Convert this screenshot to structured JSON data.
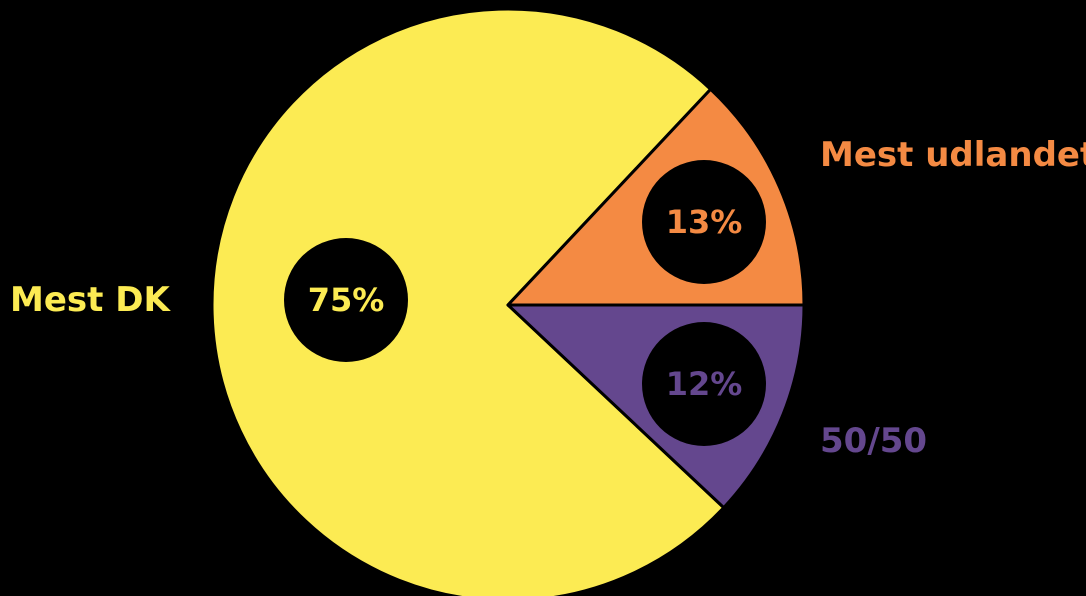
{
  "chart_data": {
    "type": "pie",
    "title": "",
    "slices": [
      {
        "label": "Mest DK",
        "value": 75,
        "value_label": "75%",
        "color": "#FCEB53"
      },
      {
        "label": "Mest udlandet",
        "value": 13,
        "value_label": "13%",
        "color": "#F48A43"
      },
      {
        "label": "50/50",
        "value": 12,
        "value_label": "12%",
        "color": "#64478E"
      }
    ],
    "legend": "none",
    "background": "#000000",
    "outline_color": "#000000"
  }
}
